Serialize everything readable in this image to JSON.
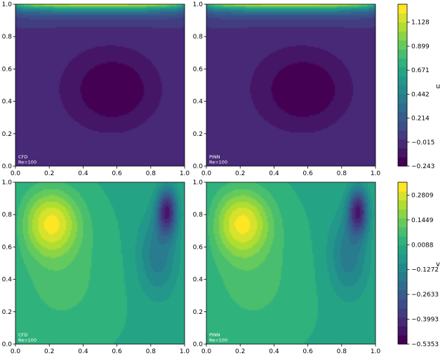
{
  "chart_data": [
    {
      "type": "heatmap",
      "label": "CFD\nRe=100",
      "field": "u",
      "xlim": [
        0,
        1
      ],
      "ylim": [
        0,
        1
      ],
      "xticks": [
        "0.0",
        "0.2",
        "0.4",
        "0.6",
        "0.8",
        "1.0"
      ],
      "yticks": [
        "0.0",
        "0.2",
        "0.4",
        "0.6",
        "0.8",
        "1.0"
      ]
    },
    {
      "type": "heatmap",
      "label": "PINN\nRe=100",
      "field": "u",
      "xlim": [
        0,
        1
      ],
      "ylim": [
        0,
        1
      ],
      "xticks": [
        "0.0",
        "0.2",
        "0.4",
        "0.6",
        "0.8",
        "1.0"
      ],
      "yticks": [
        "0.0",
        "0.2",
        "0.4",
        "0.6",
        "0.8",
        "1.0"
      ]
    },
    {
      "type": "heatmap",
      "label": "CFD\nRe=100",
      "field": "v",
      "xlim": [
        0,
        1
      ],
      "ylim": [
        0,
        1
      ],
      "xticks": [
        "0.0",
        "0.2",
        "0.4",
        "0.6",
        "0.8",
        "1.0"
      ],
      "yticks": [
        "0.0",
        "0.2",
        "0.4",
        "0.6",
        "0.8",
        "1.0"
      ]
    },
    {
      "type": "heatmap",
      "label": "PINN\nRe=100",
      "field": "v",
      "xlim": [
        0,
        1
      ],
      "ylim": [
        0,
        1
      ],
      "xticks": [
        "0.0",
        "0.2",
        "0.4",
        "0.6",
        "0.8",
        "1.0"
      ],
      "yticks": [
        "0.0",
        "0.2",
        "0.4",
        "0.6",
        "0.8",
        "1.0"
      ]
    }
  ],
  "colorbars": [
    {
      "label": "u",
      "range": [
        -0.243,
        1.3
      ],
      "ticks": [
        "1.128",
        "0.899",
        "0.671",
        "0.442",
        "0.214",
        "−0.015",
        "−0.243"
      ],
      "tick_values": [
        1.128,
        0.899,
        0.671,
        0.442,
        0.214,
        -0.015,
        -0.243
      ]
    },
    {
      "label": "v",
      "range": [
        -0.5353,
        0.3516
      ],
      "ticks": [
        "0.2809",
        "0.1449",
        "0.0088",
        "−0.1272",
        "−0.2633",
        "−0.3993",
        "−0.5353"
      ],
      "tick_values": [
        0.2809,
        0.1449,
        0.0088,
        -0.1272,
        -0.2633,
        -0.3993,
        -0.5353
      ]
    }
  ],
  "colormap": [
    "#440154",
    "#472c7a",
    "#3b528b",
    "#2c728e",
    "#21908d",
    "#27ad81",
    "#5cc863",
    "#aadc32",
    "#fde725"
  ]
}
